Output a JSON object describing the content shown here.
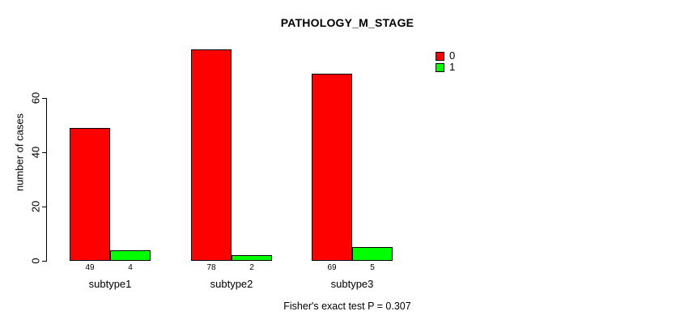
{
  "chart_data": {
    "type": "bar",
    "title": "PATHOLOGY_M_STAGE",
    "ylabel": "number of cases",
    "xlabel": "",
    "categories": [
      "subtype1",
      "subtype2",
      "subtype3"
    ],
    "series": [
      {
        "name": "0",
        "color": "#ff0000",
        "values": [
          49,
          78,
          69
        ]
      },
      {
        "name": "1",
        "color": "#00ff00",
        "values": [
          4,
          2,
          5
        ]
      }
    ],
    "value_labels_shown": true,
    "yticks": [
      0,
      20,
      40,
      60
    ],
    "ylim": [
      0,
      79
    ],
    "grid": false,
    "legend_position": "top-right",
    "annotation": "Fisher's exact test P = 0.307"
  }
}
